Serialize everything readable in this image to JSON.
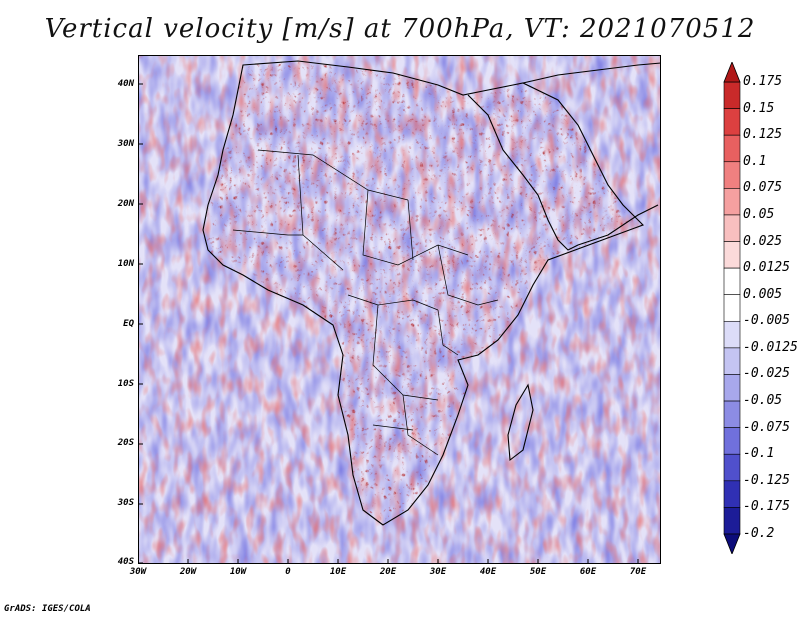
{
  "title": "Vertical velocity [m/s] at 700hPa, VT: 2021070512",
  "credit": "GrADS: IGES/COLA",
  "map": {
    "region": "Africa",
    "lat_labels": [
      "40N",
      "30N",
      "20N",
      "10N",
      "EQ",
      "10S",
      "20S",
      "30S",
      "40S"
    ],
    "lon_labels": [
      "30W",
      "20W",
      "10W",
      "0",
      "10E",
      "20E",
      "30E",
      "40E",
      "50E",
      "60E",
      "70E"
    ]
  },
  "colorbar": {
    "labels": [
      "0.175",
      "0.15",
      "0.125",
      "0.1",
      "0.075",
      "0.05",
      "0.025",
      "0.0125",
      "0.005",
      "-0.005",
      "-0.0125",
      "-0.025",
      "-0.05",
      "-0.075",
      "-0.1",
      "-0.125",
      "-0.175",
      "-0.2"
    ],
    "colors": [
      "#b01818",
      "#c92a2a",
      "#dc4040",
      "#e86060",
      "#f08080",
      "#f5a0a0",
      "#f8bfbf",
      "#fbdada",
      "#ffffff",
      "#ffffff",
      "#dcdcf8",
      "#c4c4f2",
      "#a8a8ec",
      "#8c8ce4",
      "#7070dc",
      "#5050cc",
      "#3030b4",
      "#1c1c98",
      "#0c0c7a"
    ]
  }
}
